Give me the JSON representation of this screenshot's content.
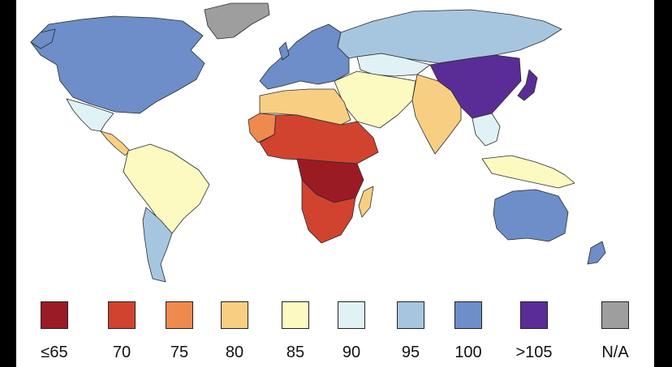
{
  "legend": {
    "items": [
      {
        "label": "≤65",
        "color": "#9b1b25"
      },
      {
        "label": "70",
        "color": "#d1432e"
      },
      {
        "label": "75",
        "color": "#ee8a4e"
      },
      {
        "label": "80",
        "color": "#f8cf82"
      },
      {
        "label": "85",
        "color": "#fdfac1"
      },
      {
        "label": "90",
        "color": "#e1f2f6"
      },
      {
        "label": "95",
        "color": "#a6c6e0"
      },
      {
        "label": "100",
        "color": "#6d8ec8"
      },
      {
        "label": ">105",
        "color": "#5a2d96"
      },
      {
        "label": "N/A",
        "color": "#9e9e9e"
      }
    ]
  },
  "regions": [
    {
      "name": "greenland",
      "band": "N/A"
    },
    {
      "name": "north-america",
      "band": "100"
    },
    {
      "name": "mexico",
      "band": "90"
    },
    {
      "name": "central-america",
      "band": "80"
    },
    {
      "name": "south-america",
      "band": "85"
    },
    {
      "name": "southern-cone",
      "band": "95"
    },
    {
      "name": "europe",
      "band": "100"
    },
    {
      "name": "russia",
      "band": "95"
    },
    {
      "name": "central-asia",
      "band": "90"
    },
    {
      "name": "middle-east",
      "band": "85"
    },
    {
      "name": "south-asia",
      "band": "80"
    },
    {
      "name": "east-asia",
      "band": ">105"
    },
    {
      "name": "japan",
      "band": ">105"
    },
    {
      "name": "southeast-asia",
      "band": "90"
    },
    {
      "name": "maritime-sea",
      "band": "85"
    },
    {
      "name": "north-africa",
      "band": "80"
    },
    {
      "name": "west-africa-edge",
      "band": "75"
    },
    {
      "name": "sahel",
      "band": "70"
    },
    {
      "name": "central-africa",
      "band": "≤65"
    },
    {
      "name": "southern-africa",
      "band": "70"
    },
    {
      "name": "madagascar",
      "band": "80"
    },
    {
      "name": "australia",
      "band": "100"
    },
    {
      "name": "new-zealand",
      "band": "100"
    }
  ]
}
